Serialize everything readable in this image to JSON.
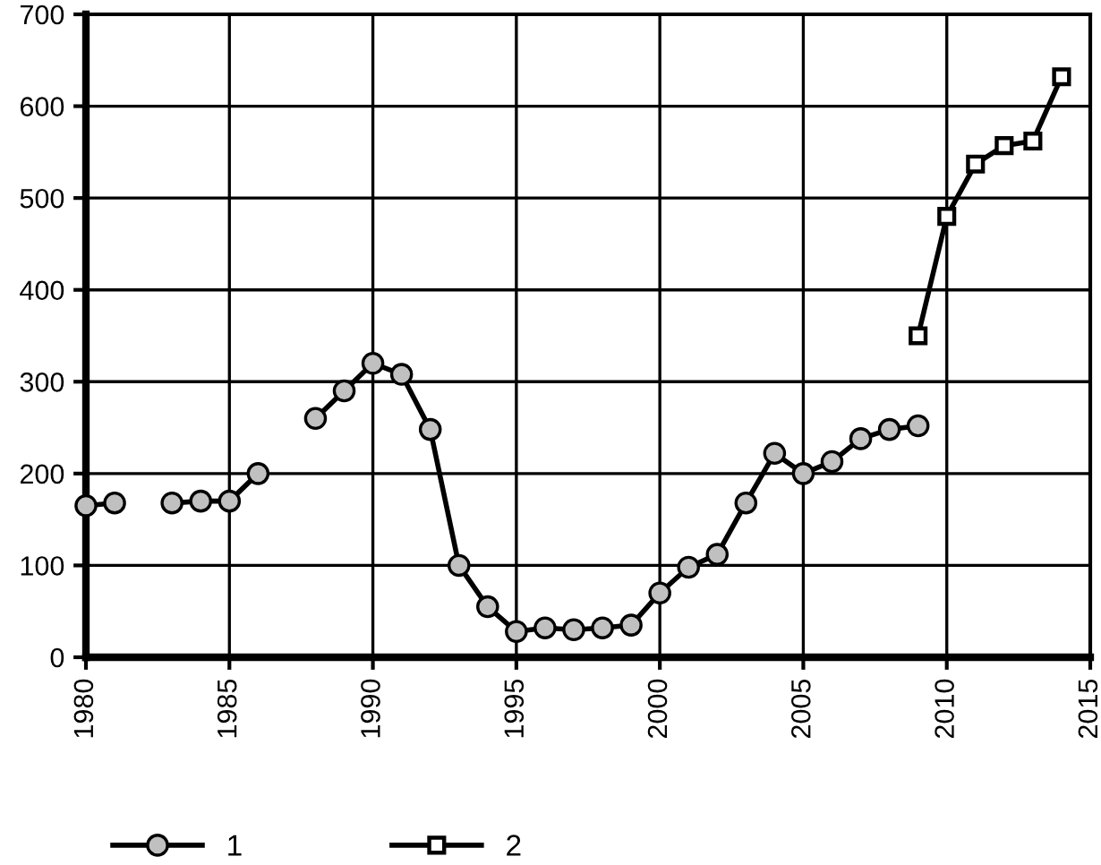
{
  "chart_data": {
    "type": "line",
    "x": [
      1980,
      1981,
      1982,
      1983,
      1984,
      1985,
      1986,
      1987,
      1988,
      1989,
      1990,
      1991,
      1992,
      1993,
      1994,
      1995,
      1996,
      1997,
      1998,
      1999,
      2000,
      2001,
      2002,
      2003,
      2004,
      2005,
      2006,
      2007,
      2008,
      2009,
      2010,
      2011,
      2012,
      2013,
      2014
    ],
    "series": [
      {
        "name": "1",
        "color": "#000000",
        "marker": "circle",
        "values": [
          165,
          168,
          null,
          168,
          170,
          170,
          200,
          null,
          260,
          290,
          320,
          308,
          248,
          100,
          55,
          28,
          32,
          30,
          32,
          35,
          70,
          98,
          112,
          168,
          222,
          200,
          213,
          238,
          248,
          252,
          null,
          null,
          null,
          null,
          null
        ]
      },
      {
        "name": "2",
        "color": "#000000",
        "marker": "square",
        "values": [
          null,
          null,
          null,
          null,
          null,
          null,
          null,
          null,
          null,
          null,
          null,
          null,
          null,
          null,
          null,
          null,
          null,
          null,
          null,
          null,
          null,
          null,
          null,
          null,
          null,
          null,
          null,
          null,
          null,
          350,
          480,
          537,
          557,
          562,
          632
        ]
      }
    ],
    "xlim": [
      1980,
      2015
    ],
    "xticks": [
      1980,
      1985,
      1990,
      1995,
      2000,
      2005,
      2010,
      2015
    ],
    "ylim": [
      0,
      700
    ],
    "yticks": [
      0,
      100,
      200,
      300,
      400,
      500,
      600,
      700
    ],
    "grid": true,
    "legend": "bottom",
    "line_style": "solid"
  }
}
